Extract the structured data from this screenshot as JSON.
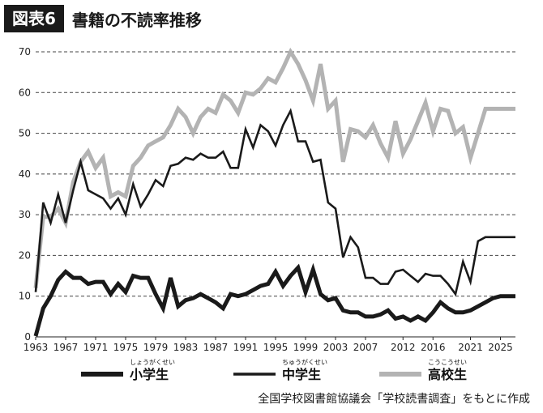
{
  "header": {
    "tag": "図表6",
    "title": "書籍の不読率推移"
  },
  "source": "全国学校図書館協議会「学校読書調査」をもとに作成",
  "colors": {
    "elementary": "#1a1a1a",
    "junior_high": "#1a1a1a",
    "high_school": "#b3b3b3",
    "grid": "#444444"
  },
  "chart_data": {
    "type": "line",
    "title": "書籍の不読率推移",
    "xlabel": "",
    "ylabel": "",
    "ylim": [
      0,
      70
    ],
    "yticks": [
      0,
      10,
      20,
      30,
      40,
      50,
      60,
      70
    ],
    "xlim": [
      1963,
      2027
    ],
    "xticks": [
      1963,
      1967,
      1971,
      1975,
      1979,
      1983,
      1987,
      1991,
      1995,
      1999,
      2003,
      2007,
      2012,
      2016,
      2021,
      2025
    ],
    "grid": true,
    "legend_position": "bottom",
    "x": [
      1963,
      1964,
      1965,
      1966,
      1967,
      1968,
      1969,
      1970,
      1971,
      1972,
      1973,
      1974,
      1975,
      1976,
      1977,
      1978,
      1979,
      1980,
      1981,
      1982,
      1983,
      1984,
      1985,
      1986,
      1987,
      1988,
      1989,
      1990,
      1991,
      1992,
      1993,
      1994,
      1995,
      1996,
      1997,
      1998,
      1999,
      2000,
      2001,
      2002,
      2003,
      2004,
      2005,
      2006,
      2007,
      2008,
      2009,
      2010,
      2011,
      2012,
      2013,
      2014,
      2015,
      2016,
      2017,
      2018,
      2019,
      2020,
      2021,
      2022,
      2023,
      2024,
      2025,
      2026,
      2027
    ],
    "series": [
      {
        "name": "小学生",
        "ruby": "しょうがくせい",
        "style": "thick-black",
        "values": [
          0.2,
          7,
          10,
          14,
          16,
          14.5,
          14.5,
          13,
          13.5,
          13.5,
          10.5,
          13,
          11,
          15,
          14.5,
          14.5,
          10.5,
          7,
          14.5,
          7.5,
          9,
          9.5,
          10.5,
          9.5,
          8.5,
          7,
          10.5,
          10,
          10.5,
          11.5,
          12.5,
          13,
          16,
          12.5,
          15,
          17,
          11,
          16.5,
          10.5,
          9,
          9.5,
          6.5,
          6,
          6,
          5,
          5,
          5.5,
          6.5,
          4.5,
          5,
          4,
          5,
          4,
          6,
          8.5,
          7,
          6,
          6,
          6.5,
          7.5,
          8.5,
          9.5,
          10,
          10,
          10
        ]
      },
      {
        "name": "中学生",
        "ruby": "ちゅうがくせい",
        "style": "thin-black",
        "values": [
          11,
          33,
          28,
          35,
          28,
          36,
          43,
          36,
          35,
          34,
          31.5,
          34,
          30,
          37.5,
          32,
          35,
          38.5,
          37,
          42,
          42.5,
          44,
          43.5,
          45,
          44,
          44,
          45.5,
          41.5,
          41.5,
          51,
          46.5,
          52,
          50.5,
          47,
          52,
          55.5,
          48,
          48,
          43,
          43.5,
          33,
          31.5,
          19.5,
          24.5,
          22,
          14.5,
          14.5,
          13,
          13,
          16,
          16.5,
          15,
          13.5,
          15.5,
          15,
          15,
          13,
          10.5,
          18.5,
          13.5,
          23.5,
          24.5,
          24.5,
          24.5,
          24.5,
          24.5
        ]
      },
      {
        "name": "高校生",
        "ruby": "こうこうせい",
        "style": "thick-gray",
        "values": [
          12,
          29.5,
          29.5,
          31.5,
          28,
          38,
          43,
          45.5,
          41.5,
          44,
          34.5,
          35.5,
          34.5,
          42,
          44,
          47,
          48,
          49,
          52,
          56,
          54,
          50,
          54,
          56,
          55,
          59.5,
          58,
          55,
          60,
          59.5,
          61,
          63.5,
          62.5,
          66,
          70,
          67,
          63,
          58,
          67,
          56,
          58,
          43,
          51,
          50.5,
          49,
          52,
          47.5,
          44,
          53,
          45,
          48.5,
          53,
          57.5,
          50.5,
          56,
          55.5,
          50,
          51.5,
          44,
          50,
          56,
          56,
          56,
          56,
          56
        ]
      }
    ]
  }
}
